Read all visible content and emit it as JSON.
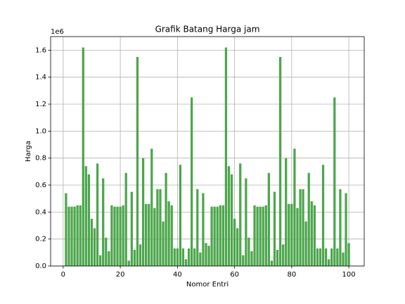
{
  "chart_data": {
    "type": "bar",
    "title": "Grafik Batang Harga jam",
    "x_label": "Nomor Entri",
    "y_label": "Harga",
    "y_offset_label": "1e6",
    "x": [
      1,
      2,
      3,
      4,
      5,
      6,
      7,
      8,
      9,
      10,
      11,
      12,
      13,
      14,
      15,
      16,
      17,
      18,
      19,
      20,
      21,
      22,
      23,
      24,
      25,
      26,
      27,
      28,
      29,
      30,
      31,
      32,
      33,
      34,
      35,
      36,
      37,
      38,
      39,
      40,
      41,
      42,
      43,
      44,
      45,
      46,
      47,
      48,
      49,
      50,
      51,
      52,
      53,
      54,
      55,
      56,
      57,
      58,
      59,
      60,
      61,
      62,
      63,
      64,
      65,
      66,
      67,
      68,
      69,
      70,
      71,
      72,
      73,
      74,
      75,
      76,
      77,
      78,
      79,
      80,
      81,
      82,
      83,
      84,
      85,
      86,
      87,
      88,
      89,
      90,
      91,
      92,
      93,
      94,
      95,
      96,
      97,
      98,
      99,
      100
    ],
    "values": [
      540000,
      440000,
      440000,
      440000,
      450000,
      450000,
      1620000,
      740000,
      680000,
      350000,
      280000,
      760000,
      80000,
      650000,
      210000,
      110000,
      450000,
      440000,
      440000,
      440000,
      450000,
      690000,
      40000,
      550000,
      120000,
      1550000,
      160000,
      800000,
      460000,
      460000,
      870000,
      430000,
      570000,
      570000,
      330000,
      690000,
      480000,
      450000,
      130000,
      130000,
      750000,
      130000,
      50000,
      130000,
      1250000,
      130000,
      570000,
      100000,
      540000,
      170000,
      150000,
      440000,
      440000,
      440000,
      450000,
      450000,
      1620000,
      740000,
      680000,
      350000,
      280000,
      760000,
      80000,
      650000,
      210000,
      110000,
      450000,
      440000,
      440000,
      440000,
      450000,
      690000,
      40000,
      550000,
      120000,
      1550000,
      160000,
      800000,
      460000,
      460000,
      870000,
      430000,
      570000,
      570000,
      330000,
      690000,
      480000,
      450000,
      130000,
      130000,
      750000,
      130000,
      50000,
      130000,
      1250000,
      130000,
      570000,
      100000,
      540000,
      170000
    ],
    "color": "#4ca64c",
    "xlim": [
      -4.39,
      105.39
    ],
    "xticks": [
      0,
      20,
      40,
      60,
      80,
      100
    ],
    "ylim": [
      0,
      1701000
    ],
    "yticks": [
      {
        "value": 0,
        "label": "0.0"
      },
      {
        "value": 200000,
        "label": "0.2"
      },
      {
        "value": 400000,
        "label": "0.4"
      },
      {
        "value": 600000,
        "label": "0.6"
      },
      {
        "value": 800000,
        "label": "0.8"
      },
      {
        "value": 1000000,
        "label": "1.0"
      },
      {
        "value": 1200000,
        "label": "1.2"
      },
      {
        "value": 1400000,
        "label": "1.4"
      },
      {
        "value": 1600000,
        "label": "1.6"
      }
    ],
    "grid": true
  }
}
